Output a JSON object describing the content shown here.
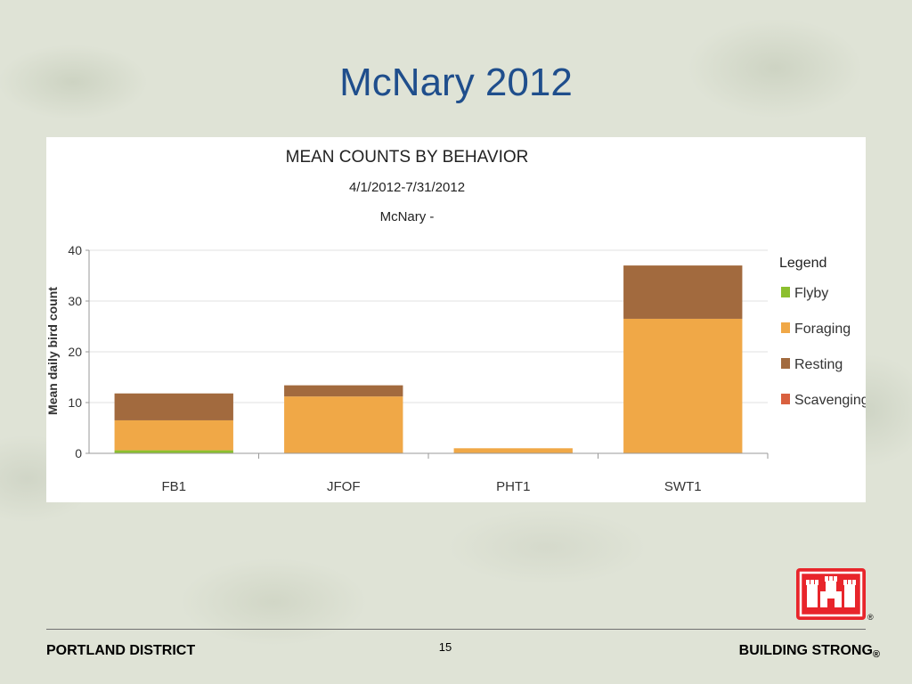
{
  "slide": {
    "title": "McNary 2012",
    "footer_left": "PORTLAND DISTRICT",
    "page_number": "15",
    "footer_right": "BUILDING STRONG",
    "registered_mark": "®",
    "logo_name": "castle-logo",
    "logo_color": "#e8252b"
  },
  "chart_data": {
    "type": "bar",
    "stacked": true,
    "title": "MEAN COUNTS BY BEHAVIOR",
    "subtitle": "4/1/2012-7/31/2012",
    "subtitle2": "McNary -",
    "ylabel": "Mean daily bird count",
    "xlabel": "",
    "ylim": [
      0,
      40
    ],
    "yticks": [
      0,
      10,
      20,
      30,
      40
    ],
    "grid": true,
    "legend_title": "Legend",
    "legend_position": "right",
    "categories": [
      "FB1",
      "JFOF",
      "PHT1",
      "SWT1"
    ],
    "series": [
      {
        "name": "Flyby",
        "color": "#8cbf2e",
        "values": [
          0.6,
          0.0,
          0.0,
          0.0
        ]
      },
      {
        "name": "Foraging",
        "color": "#f0a847",
        "values": [
          5.9,
          11.2,
          1.0,
          26.5
        ]
      },
      {
        "name": "Resting",
        "color": "#a26a3e",
        "values": [
          5.3,
          2.2,
          0.0,
          10.5
        ]
      },
      {
        "name": "Scavenging",
        "color": "#d9603f",
        "values": [
          0.0,
          0.0,
          0.0,
          0.0
        ]
      }
    ]
  }
}
